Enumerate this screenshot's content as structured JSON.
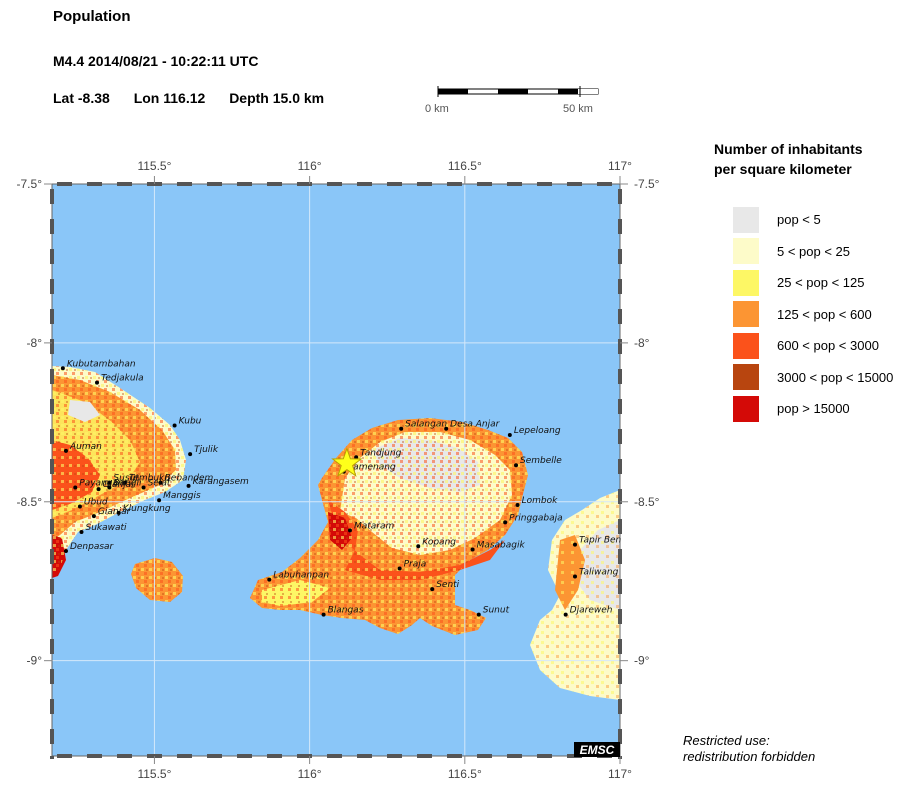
{
  "header": {
    "title": "Population",
    "event": "M4.4  2014/08/21 - 10:22:11 UTC",
    "lat": "Lat -8.38",
    "lon": "Lon 116.12",
    "depth": "Depth  15.0 km"
  },
  "scale": {
    "start_label": "0 km",
    "end_label": "50 km"
  },
  "map": {
    "lon_range": [
      115.17,
      117.0
    ],
    "lat_range": [
      -9.3,
      -7.5
    ],
    "lon_ticks": [
      {
        "value": 115.5,
        "label": "115.5°"
      },
      {
        "value": 116.0,
        "label": "116°"
      },
      {
        "value": 116.5,
        "label": "116.5°"
      },
      {
        "value": 117.0,
        "label": "117°"
      }
    ],
    "lat_ticks": [
      {
        "value": -7.5,
        "label": "-7.5°"
      },
      {
        "value": -8.0,
        "label": "-8°"
      },
      {
        "value": -8.5,
        "label": "-8.5°"
      },
      {
        "value": -9.0,
        "label": "-9°"
      }
    ],
    "epicenter": {
      "lon": 116.12,
      "lat": -8.38
    },
    "ocean_color": "#8ac6f8",
    "cities": [
      {
        "name": "Kubutambahan",
        "lon": 115.205,
        "lat": -8.08
      },
      {
        "name": "Tedjakula",
        "lon": 115.315,
        "lat": -8.125
      },
      {
        "name": "Kubu",
        "lon": 115.565,
        "lat": -8.26
      },
      {
        "name": "Auman",
        "lon": 115.215,
        "lat": -8.34
      },
      {
        "name": "Tjulik",
        "lon": 115.615,
        "lat": -8.35
      },
      {
        "name": "Susut",
        "lon": 115.355,
        "lat": -8.44
      },
      {
        "name": "Tembuku",
        "lon": 115.405,
        "lat": -8.44
      },
      {
        "name": "Bebandem",
        "lon": 115.52,
        "lat": -8.44
      },
      {
        "name": "Payangan",
        "lon": 115.245,
        "lat": -8.455
      },
      {
        "name": "Gianjar",
        "lon": 115.32,
        "lat": -8.46
      },
      {
        "name": "Bangli",
        "lon": 115.355,
        "lat": -8.455
      },
      {
        "name": "Selat",
        "lon": 115.465,
        "lat": -8.455
      },
      {
        "name": "Karangasem",
        "lon": 115.61,
        "lat": -8.45
      },
      {
        "name": "Manggis",
        "lon": 115.515,
        "lat": -8.495
      },
      {
        "name": "Ubud",
        "lon": 115.26,
        "lat": -8.515
      },
      {
        "name": "Gianjar",
        "lon": 115.305,
        "lat": -8.545
      },
      {
        "name": "Klungkung",
        "lon": 115.385,
        "lat": -8.535
      },
      {
        "name": "Sukawati",
        "lon": 115.265,
        "lat": -8.595
      },
      {
        "name": "Denpasar",
        "lon": 115.215,
        "lat": -8.655
      },
      {
        "name": "Salangan",
        "lon": 116.295,
        "lat": -8.27
      },
      {
        "name": "Desa Anjar",
        "lon": 116.44,
        "lat": -8.27
      },
      {
        "name": "Lepeloang",
        "lon": 116.645,
        "lat": -8.29
      },
      {
        "name": "Tandjung",
        "lon": 116.15,
        "lat": -8.36
      },
      {
        "name": "Pamenang",
        "lon": 116.11,
        "lat": -8.405
      },
      {
        "name": "Sembelle",
        "lon": 116.665,
        "lat": -8.385
      },
      {
        "name": "Lombok",
        "lon": 116.67,
        "lat": -8.51
      },
      {
        "name": "Mataram",
        "lon": 116.13,
        "lat": -8.59
      },
      {
        "name": "Pringgabaja",
        "lon": 116.63,
        "lat": -8.565
      },
      {
        "name": "Kopang",
        "lon": 116.35,
        "lat": -8.64
      },
      {
        "name": "Masabagik",
        "lon": 116.525,
        "lat": -8.65
      },
      {
        "name": "Tapir Ben",
        "lon": 116.855,
        "lat": -8.635
      },
      {
        "name": "Praja",
        "lon": 116.29,
        "lat": -8.71
      },
      {
        "name": "Labuhanpan",
        "lon": 115.87,
        "lat": -8.745
      },
      {
        "name": "Taliwang",
        "lon": 116.855,
        "lat": -8.735
      },
      {
        "name": "Senti",
        "lon": 116.395,
        "lat": -8.775
      },
      {
        "name": "Sunut",
        "lon": 116.545,
        "lat": -8.855
      },
      {
        "name": "Blangas",
        "lon": 116.045,
        "lat": -8.855
      },
      {
        "name": "Djareweh",
        "lon": 116.825,
        "lat": -8.855
      }
    ],
    "badge": "EMSC"
  },
  "legend": {
    "title_line1": "Number of inhabitants",
    "title_line2": "per square kilometer",
    "items": [
      {
        "label": "pop < 5",
        "color": "#e8e8e8"
      },
      {
        "label": "5 < pop < 25",
        "color": "#fdfbc9"
      },
      {
        "label": "25 < pop < 125",
        "color": "#fdf765"
      },
      {
        "label": "125 < pop < 600",
        "color": "#fc9533"
      },
      {
        "label": "600 < pop < 3000",
        "color": "#fb521b"
      },
      {
        "label": "3000 < pop < 15000",
        "color": "#b8450f"
      },
      {
        "label": "pop > 15000",
        "color": "#d40a07"
      }
    ]
  },
  "notice": {
    "line1": "Restricted use:",
    "line2": "redistribution forbidden"
  }
}
